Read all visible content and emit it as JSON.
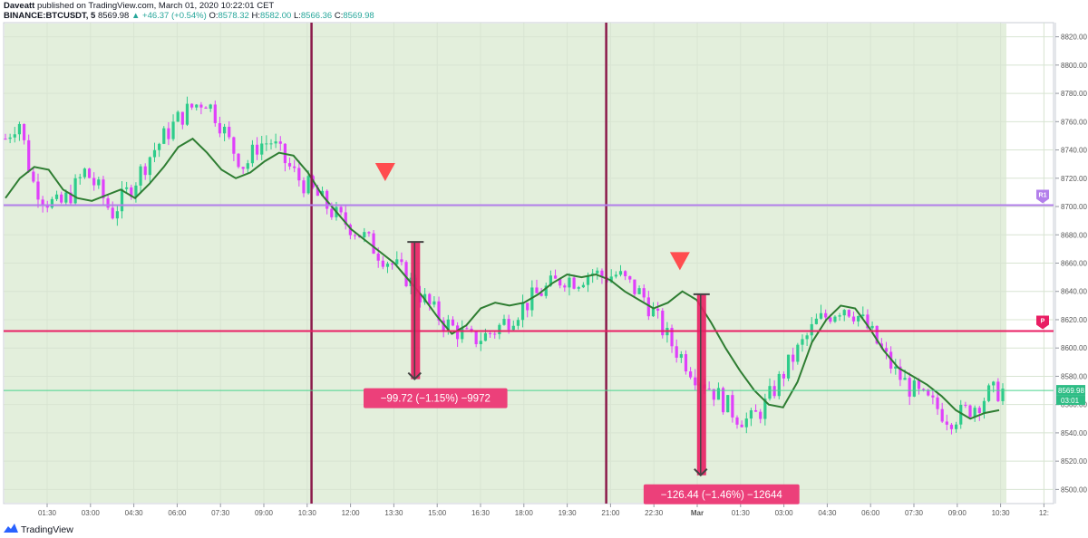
{
  "header": {
    "author": "Daveatt",
    "published_text": "published on TradingView.com, March 01, 2020 10:22:01 CET",
    "symbol": "BINANCE:BTCUSDT, 5",
    "last": "8569.98",
    "change": "+46.37 (+0.54%)",
    "o_label": "O:",
    "o": "8578.32",
    "h_label": "H:",
    "h": "8582.00",
    "l_label": "L:",
    "l": "8566.36",
    "c_label": "C:",
    "c": "8569.98"
  },
  "footer": {
    "brand": "TradingView"
  },
  "colors": {
    "bull": "#2ecc8b",
    "bear": "#e040fb",
    "ma": "#2e7d32",
    "bg_zone": "#e3efdc",
    "pivot_r1": "#b37feb",
    "pivot_p": "#e91e63",
    "session_line": "#8b1a4a",
    "trade_bar": "#e91e63",
    "signal_marker": "#ff4d4f"
  },
  "chart_data": {
    "type": "candlestick",
    "title": "",
    "xlabel": "",
    "ylabel": "",
    "ylim": [
      8490,
      8830
    ],
    "y_ticks": [
      "8820.00",
      "8800.00",
      "8780.00",
      "8760.00",
      "8740.00",
      "8720.00",
      "8700.00",
      "8680.00",
      "8660.00",
      "8640.00",
      "8620.00",
      "8600.00",
      "8580.00",
      "8560.00",
      "8540.00",
      "8520.00",
      "8500.00"
    ],
    "x_ticks": [
      "01:30",
      "03:00",
      "04:30",
      "06:00",
      "07:30",
      "09:00",
      "10:30",
      "12:00",
      "13:30",
      "15:00",
      "16:30",
      "18:00",
      "19:30",
      "21:00",
      "22:30",
      "Mar",
      "01:30",
      "03:00",
      "04:30",
      "06:00",
      "07:30",
      "09:00",
      "10:30",
      "12:"
    ],
    "levels": [
      {
        "label": "R1",
        "value": 8701
      },
      {
        "label": "P",
        "value": 8612
      }
    ],
    "current_price_label": "8569.98",
    "countdown_label": "03:01",
    "session_separators_x_tick_index": [
      6.1,
      12.9
    ],
    "signals": [
      {
        "x_tick_index": 7.8,
        "price": 8725,
        "type": "sell"
      },
      {
        "x_tick_index": 14.6,
        "price": 8662,
        "type": "sell"
      }
    ],
    "trades": [
      {
        "label": "−99.72 (−1.15%) −9972",
        "from": 8675,
        "to": 8578,
        "x_tick_index": 8.5
      },
      {
        "label": "−126.44 (−1.46%) −12644",
        "from": 8638,
        "to": 8510,
        "x_tick_index": 15.1
      }
    ],
    "series": [
      {
        "kind": "close",
        "values": [
          8748,
          8762,
          8718,
          8705,
          8700,
          8710,
          8725,
          8712,
          8695,
          8708,
          8722,
          8738,
          8750,
          8762,
          8770,
          8776,
          8762,
          8742,
          8728,
          8744,
          8746,
          8732,
          8720,
          8712,
          8702,
          8692,
          8686,
          8678,
          8668,
          8660,
          8652,
          8640,
          8628,
          8618,
          8612,
          8606,
          8608,
          8614,
          8622,
          8630,
          8638,
          8644,
          8650,
          8648,
          8654,
          8650,
          8652,
          8644,
          8636,
          8620,
          8604,
          8592,
          8580,
          8572,
          8562,
          8552,
          8548,
          8558,
          8574,
          8590,
          8604,
          8618,
          8624,
          8630,
          8624,
          8612,
          8596,
          8582,
          8572,
          8564,
          8558,
          8550,
          8554,
          8560,
          8568,
          8570
        ]
      },
      {
        "kind": "moving_average",
        "values": [
          8706,
          8720,
          8728,
          8726,
          8712,
          8706,
          8704,
          8708,
          8712,
          8706,
          8716,
          8728,
          8742,
          8748,
          8738,
          8726,
          8720,
          8724,
          8732,
          8738,
          8736,
          8724,
          8708,
          8696,
          8684,
          8676,
          8668,
          8660,
          8648,
          8636,
          8622,
          8610,
          8616,
          8628,
          8632,
          8630,
          8632,
          8638,
          8646,
          8652,
          8650,
          8652,
          8648,
          8640,
          8634,
          8628,
          8632,
          8640,
          8634,
          8618,
          8600,
          8584,
          8570,
          8560,
          8558,
          8576,
          8604,
          8620,
          8630,
          8628,
          8614,
          8598,
          8586,
          8580,
          8574,
          8566,
          8556,
          8550,
          8554,
          8556
        ]
      }
    ]
  }
}
